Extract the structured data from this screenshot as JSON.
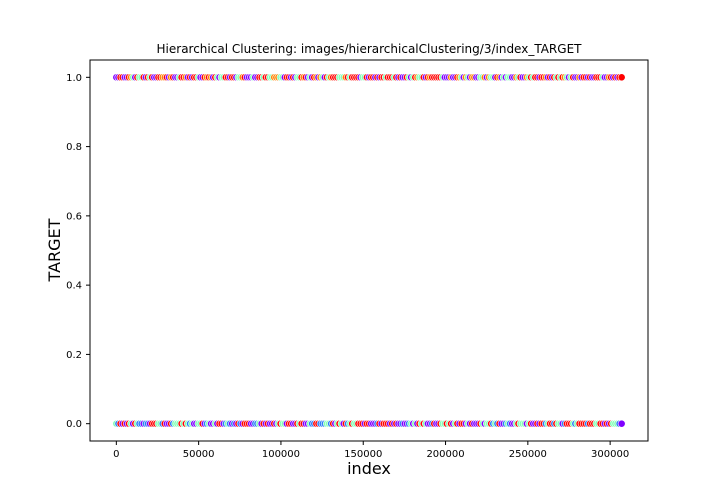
{
  "chart_data": {
    "type": "scatter",
    "title": "Hierarchical Clustering: images/hierarchicalClustering/3/index_TARGET",
    "xlabel": "index",
    "ylabel": "TARGET",
    "xlim": [
      -16000,
      323000
    ],
    "ylim": [
      -0.05,
      1.05
    ],
    "x_ticks": [
      0,
      50000,
      100000,
      150000,
      200000,
      250000,
      300000
    ],
    "x_tick_labels": [
      "0",
      "50000",
      "100000",
      "150000",
      "200000",
      "250000",
      "300000"
    ],
    "y_ticks": [
      0.0,
      0.2,
      0.4,
      0.6,
      0.8,
      1.0
    ],
    "y_tick_labels": [
      "0.0",
      "0.2",
      "0.4",
      "0.6",
      "0.8",
      "1.0"
    ],
    "grid": false,
    "legend": "none",
    "x_max": 307000,
    "cluster_colors": [
      "#ff0000",
      "#8000ff",
      "#80ffb4",
      "#ff8000",
      "#2c7ef7"
    ],
    "series": [
      {
        "values_y": 1.0,
        "x": [
          0,
          5000,
          12000,
          20000,
          28000,
          36000,
          45000,
          53000,
          61000,
          70000,
          78000,
          86000,
          95000,
          103000,
          112000,
          120000,
          129000,
          137000,
          146000,
          155000,
          163000,
          172000,
          180000,
          189000,
          197000,
          206000,
          214000,
          223000,
          232000,
          240000,
          249000,
          257000,
          266000,
          274000,
          283000,
          291000,
          300000,
          307000
        ]
      },
      {
        "values_y": 0.0,
        "x": [
          0,
          5000,
          12000,
          20000,
          28000,
          36000,
          45000,
          53000,
          61000,
          70000,
          78000,
          86000,
          95000,
          103000,
          112000,
          120000,
          129000,
          137000,
          146000,
          155000,
          163000,
          172000,
          180000,
          189000,
          197000,
          206000,
          214000,
          223000,
          232000,
          240000,
          249000,
          257000,
          266000,
          274000,
          283000,
          291000,
          300000,
          307000
        ]
      }
    ]
  }
}
